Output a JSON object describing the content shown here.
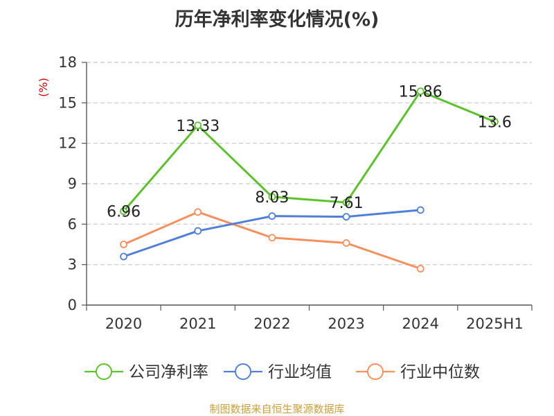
{
  "chart_data": {
    "type": "line",
    "title": "历年净利率变化情况(%)",
    "ylabel": "(%)",
    "ylim": [
      0,
      18
    ],
    "yticks": [
      0,
      3,
      6,
      9,
      12,
      15,
      18
    ],
    "categories": [
      "2020",
      "2021",
      "2022",
      "2023",
      "2024",
      "2025H1"
    ],
    "grid": true,
    "legend_position": "bottom",
    "series": [
      {
        "name": "公司净利率",
        "color": "#5cc22c",
        "values": [
          6.96,
          13.33,
          8.03,
          7.61,
          15.86,
          13.6
        ],
        "labels": [
          "6.96",
          "13.33",
          "8.03",
          "7.61",
          "15.86",
          "13.6"
        ]
      },
      {
        "name": "行业均值",
        "color": "#4f7fd6",
        "values": [
          3.6,
          5.5,
          6.6,
          6.55,
          7.05,
          null
        ]
      },
      {
        "name": "行业中位数",
        "color": "#f5905e",
        "values": [
          4.5,
          6.9,
          5.0,
          4.6,
          2.7,
          null
        ]
      }
    ]
  },
  "source_note": "制图数据来自恒生聚源数据库"
}
